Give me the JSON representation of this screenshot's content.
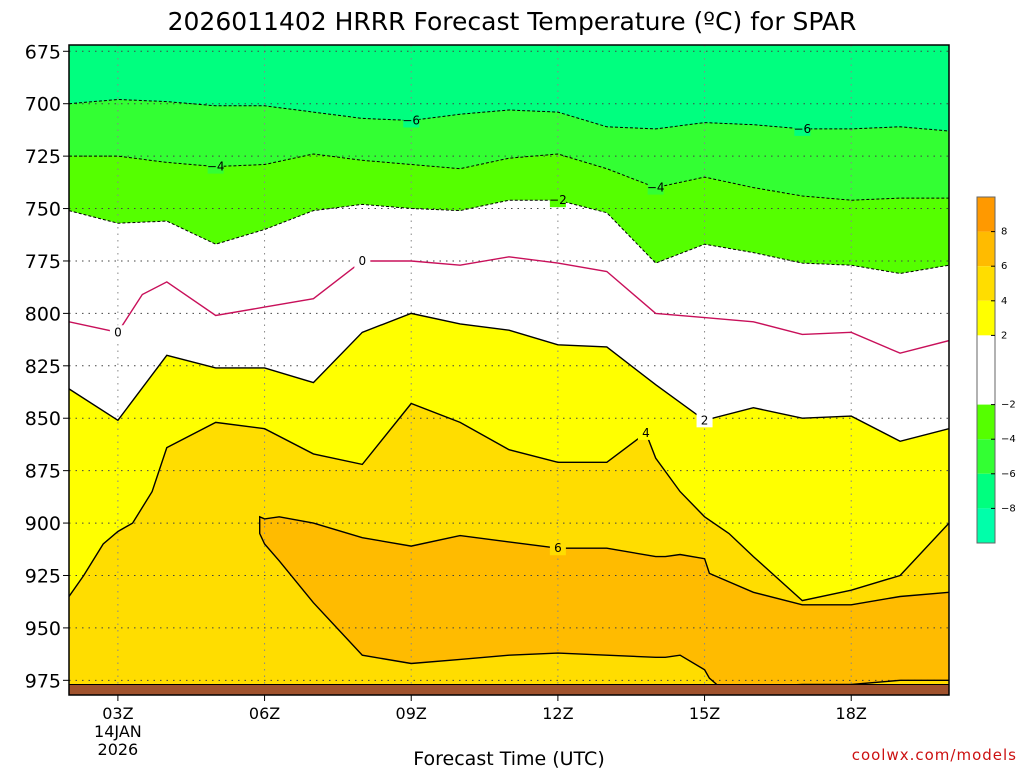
{
  "chart_data": {
    "type": "time-height contour",
    "title": "2026011402 HRRR Forecast Temperature (ºC) for SPAR",
    "xlabel": "Forecast Time (UTC)",
    "credit": "coolwx.com/models",
    "x_hours": [
      2,
      3,
      4,
      5,
      6,
      7,
      8,
      9,
      10,
      11,
      12,
      13,
      14,
      15,
      16,
      17,
      18,
      19,
      20
    ],
    "x_ticks": [
      {
        "hour": 3,
        "label": "03Z",
        "date": "14JAN",
        "year": "2026"
      },
      {
        "hour": 6,
        "label": "06Z"
      },
      {
        "hour": 9,
        "label": "09Z"
      },
      {
        "hour": 12,
        "label": "12Z"
      },
      {
        "hour": 15,
        "label": "15Z"
      },
      {
        "hour": 18,
        "label": "18Z"
      }
    ],
    "y_axis": {
      "unit": "hPa",
      "range": [
        672,
        982
      ],
      "inverted": true,
      "ticks": [
        675,
        700,
        725,
        750,
        775,
        800,
        825,
        850,
        875,
        900,
        925,
        950,
        975
      ]
    },
    "ground_pressure": 977,
    "colorbar": {
      "bands": [
        {
          "from": -10,
          "to": -8,
          "color": "#00ffaa"
        },
        {
          "from": -8,
          "to": -6,
          "color": "#00ff7f"
        },
        {
          "from": -6,
          "to": -4,
          "color": "#33ff33"
        },
        {
          "from": -4,
          "to": -2,
          "color": "#55ff00"
        },
        {
          "from": -2,
          "to": 2,
          "color": "#ffffff"
        },
        {
          "from": 2,
          "to": 4,
          "color": "#ffff00"
        },
        {
          "from": 4,
          "to": 6,
          "color": "#ffdd00"
        },
        {
          "from": 6,
          "to": 8,
          "color": "#ffbb00"
        },
        {
          "from": 8,
          "to": 10,
          "color": "#ff9900"
        }
      ],
      "tick_labels": [
        "8",
        "6",
        "4",
        "2",
        "-2",
        "-4",
        "-6",
        "-8"
      ]
    },
    "isotherms": [
      {
        "value": -6,
        "label": "6",
        "style": "dashed",
        "x": [
          2,
          3,
          4,
          5,
          6,
          7,
          8,
          9,
          10,
          11,
          12,
          13,
          14,
          15,
          16,
          17,
          18,
          19,
          20
        ],
        "p": [
          700,
          698,
          699,
          701,
          701,
          704,
          707,
          708,
          705,
          703,
          704,
          711,
          712,
          709,
          710,
          712,
          712,
          711,
          713
        ]
      },
      {
        "value": -4,
        "label": "4",
        "style": "dashed",
        "x": [
          2,
          3,
          4,
          5,
          6,
          7,
          8,
          9,
          10,
          11,
          12,
          13,
          14,
          15,
          16,
          17,
          18,
          19,
          20
        ],
        "p": [
          725,
          725,
          728,
          730,
          729,
          724,
          727,
          729,
          731,
          726,
          724,
          731,
          740,
          735,
          740,
          744,
          746,
          745,
          745
        ]
      },
      {
        "value": -2,
        "label": "2",
        "style": "dashed",
        "x": [
          2,
          3,
          4,
          5,
          6,
          7,
          8,
          9,
          10,
          11,
          12,
          13,
          14,
          15,
          16,
          17,
          18,
          19,
          20
        ],
        "p": [
          751,
          757,
          756,
          767,
          760,
          751,
          748,
          750,
          751,
          746,
          746,
          752,
          776,
          767,
          771,
          776,
          777,
          781,
          777
        ]
      },
      {
        "value": 0,
        "label": "0",
        "style": "solid",
        "color": "#c8105a",
        "x": [
          2,
          3,
          3.5,
          4,
          5,
          6,
          7,
          8,
          9,
          10,
          11,
          12,
          13,
          14,
          15,
          16,
          17,
          18,
          19,
          20
        ],
        "p": [
          804,
          809,
          791,
          785,
          801,
          797,
          793,
          775,
          775,
          777,
          773,
          776,
          780,
          800,
          802,
          804,
          810,
          809,
          819,
          813
        ]
      },
      {
        "value": 2,
        "label": "2",
        "style": "solid",
        "x": [
          2,
          3,
          4,
          5,
          6,
          7,
          8,
          9,
          10,
          11,
          12,
          13,
          14,
          15,
          16,
          17,
          18,
          19,
          20
        ],
        "p": [
          836,
          851,
          820,
          826,
          826,
          833,
          809,
          800,
          805,
          808,
          815,
          816,
          834,
          851,
          845,
          850,
          849,
          861,
          855
        ]
      },
      {
        "value": 4,
        "label": "4",
        "style": "solid",
        "x": [
          2,
          2.3,
          2.7,
          3,
          3.3,
          3.7,
          4,
          5,
          6,
          7,
          8,
          9,
          10,
          11,
          12,
          13,
          13.8,
          14,
          14.5,
          15,
          15.5,
          16,
          17,
          18,
          19,
          20
        ],
        "p": [
          935,
          925,
          910,
          904,
          900,
          885,
          864,
          852,
          855,
          867,
          872,
          843,
          852,
          865,
          871,
          871,
          857,
          869,
          885,
          897,
          905,
          916,
          937,
          932,
          925,
          900
        ]
      },
      {
        "value": 6,
        "label": "6",
        "style": "solid",
        "x": [
          5.9,
          5.9,
          6.0,
          6.3,
          7,
          8,
          9,
          10,
          11,
          12,
          13,
          14,
          14.2,
          14.5,
          15,
          15.1,
          15.3,
          16,
          17,
          18,
          19,
          20
        ],
        "p": [
          898,
          905,
          910,
          918,
          938,
          963,
          967,
          965,
          963,
          962,
          963,
          964,
          964,
          963,
          970,
          974,
          978,
          978,
          977,
          977,
          975,
          975
        ],
        "p_top": [
          898,
          897,
          898,
          897,
          900,
          907,
          911,
          906,
          909,
          912,
          912,
          916,
          916,
          915,
          917,
          924,
          926,
          933,
          939,
          939,
          935,
          933
        ]
      }
    ]
  }
}
